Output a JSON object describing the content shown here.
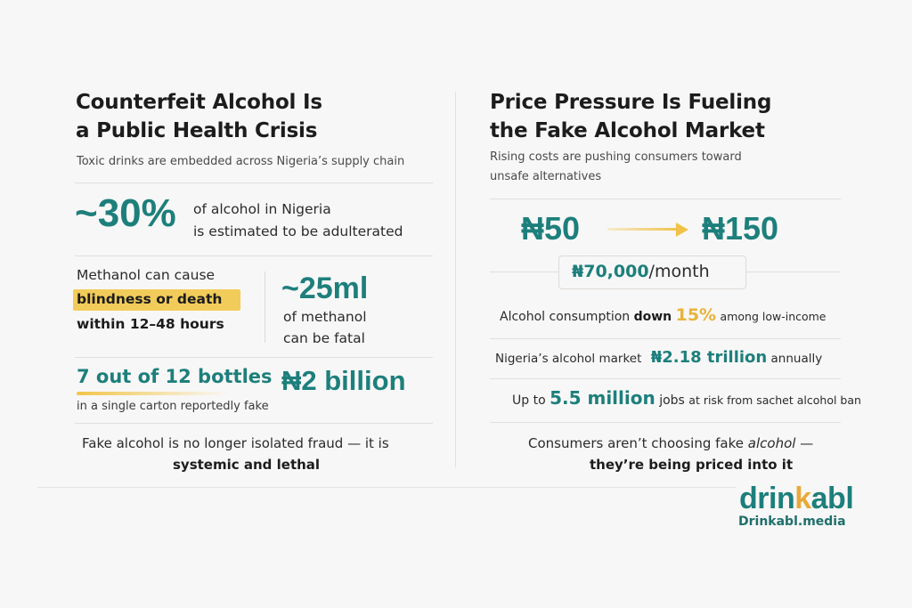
{
  "left": {
    "title_line1": "Counterfeit Alcohol Is",
    "title_line2": "a Public Health Crisis",
    "subtitle": "Toxic drinks are embedded across Nigeria’s supply chain",
    "stat1": {
      "value": "~30%",
      "line1": "of alcohol in Nigeria",
      "line2": "is estimated to be adulterated"
    },
    "methanol": {
      "line1": "Methanol can cause",
      "line2": "blindness or death",
      "line3": "within 12–48 hours"
    },
    "stat2": {
      "value": "~25ml",
      "line1": "of methanol",
      "line2": "can be fatal"
    },
    "bottles": {
      "headline": "7 out of 12 bottles",
      "caption": "in a single carton reportedly fake"
    },
    "billion": "₦2 billion",
    "conclusion_line1": "Fake alcohol is no longer isolated fraud — it is",
    "conclusion_line2": "systemic and lethal"
  },
  "right": {
    "title_line1": "Price Pressure Is Fueling",
    "title_line2": "the Fake Alcohol Market",
    "subtitle_line1": "Rising costs are pushing consumers toward",
    "subtitle_line2": "unsafe alternatives",
    "price_from": "₦50",
    "price_to": "₦150",
    "monthly_value": "₦70,000",
    "monthly_unit": "/month",
    "consumption": {
      "prefix": "Alcohol consumption",
      "bold": "down",
      "value": "15%",
      "suffix": "among low-income"
    },
    "market": {
      "prefix": "Nigeria’s alcohol market",
      "value": "₦2.18 trillion",
      "suffix": "annually"
    },
    "jobs": {
      "prefix": "Up to",
      "value": "5.5 million",
      "mid": "jobs",
      "suffix": "at risk from sachet alcohol ban"
    },
    "conclusion_line1": "Consumers aren’t choosing fake",
    "conclusion_italic": "alcohol",
    "conclusion_dash": " —",
    "conclusion_line2": "they’re being priced into it"
  },
  "brand": {
    "logo_part1": "drin",
    "logo_part2": "k",
    "logo_part3": "abl",
    "url": "Drinkabl.media"
  },
  "colors": {
    "teal": "#1d7f7c",
    "gold": "#e8b33a",
    "highlight": "#f2cc5a"
  }
}
